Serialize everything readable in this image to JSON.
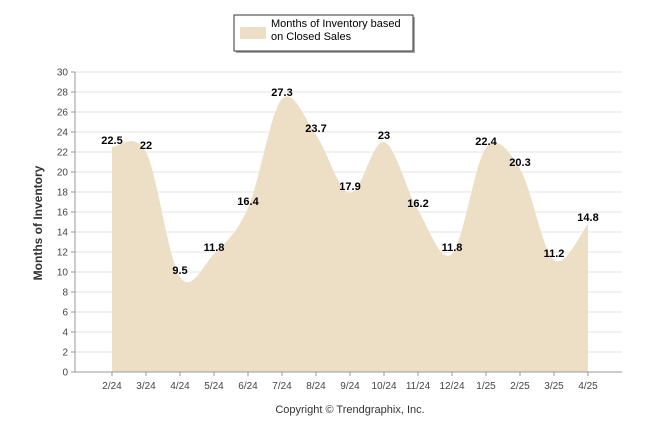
{
  "chart_data": {
    "type": "area",
    "categories": [
      "2/24",
      "3/24",
      "4/24",
      "5/24",
      "6/24",
      "7/24",
      "8/24",
      "9/24",
      "10/24",
      "11/24",
      "12/24",
      "1/25",
      "2/25",
      "3/25",
      "4/25"
    ],
    "series": [
      {
        "name": "Months of Inventory based on Closed Sales",
        "values": [
          22.5,
          22,
          9.5,
          11.8,
          16.4,
          27.3,
          23.7,
          17.9,
          23,
          16.2,
          11.8,
          22.4,
          20.3,
          11.2,
          14.8
        ],
        "color": "#ecdfc6"
      }
    ],
    "data_labels": [
      "22.5",
      "22",
      "9.5",
      "11.8",
      "16.4",
      "27.3",
      "23.7",
      "17.9",
      "23",
      "16.2",
      "11.8",
      "22.4",
      "20.3",
      "11.2",
      "14.8"
    ],
    "ylabel": "Months of Inventory",
    "ylim": [
      0,
      30
    ],
    "yticks": [
      "0",
      "2",
      "4",
      "6",
      "8",
      "10",
      "12",
      "14",
      "16",
      "18",
      "20",
      "22",
      "24",
      "26",
      "28",
      "30"
    ],
    "grid": true,
    "legend": {
      "position": "top-center",
      "lines": [
        "Months of Inventory based",
        "on Closed Sales"
      ]
    }
  },
  "copyright": "Copyright © Trendgraphix, Inc."
}
